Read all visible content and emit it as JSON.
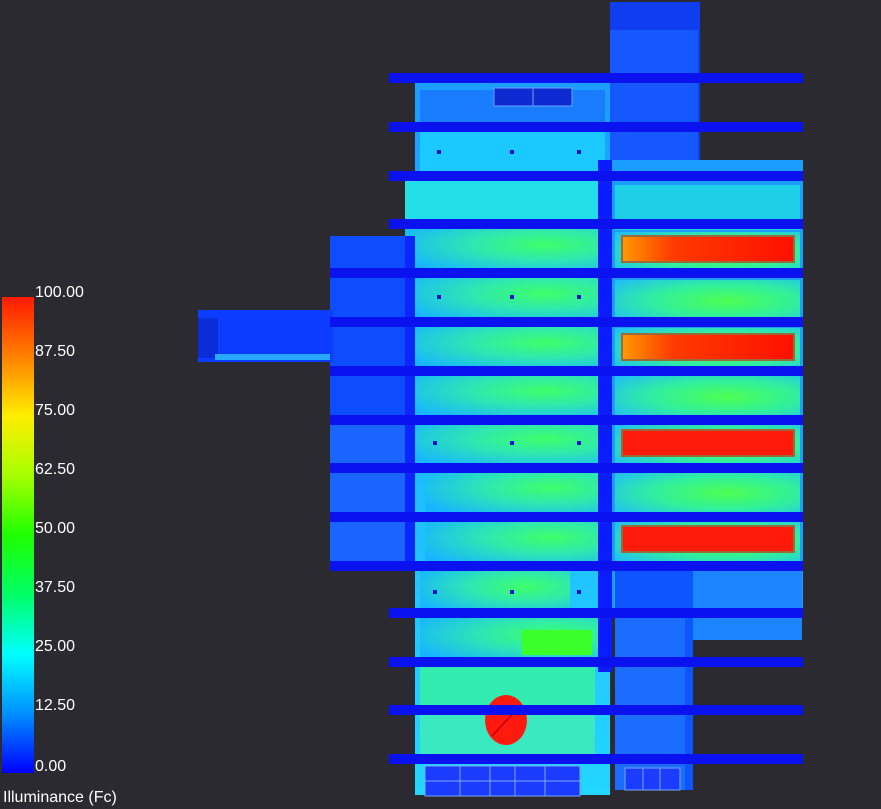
{
  "legend": {
    "title": "Illuminance (Fc)",
    "ticks": [
      "100.00",
      "87.50",
      "75.00",
      "62.50",
      "50.00",
      "37.50",
      "25.00",
      "12.50",
      "0.00"
    ],
    "colors": [
      "#ff1a00",
      "#ff8000",
      "#ffee00",
      "#a6ff00",
      "#1eff00",
      "#00ff66",
      "#00ffff",
      "#0090ff",
      "#0000ff"
    ]
  },
  "scene": {
    "background": "#2b2a31",
    "view": "3D illuminance false-color rendering of building interior"
  }
}
